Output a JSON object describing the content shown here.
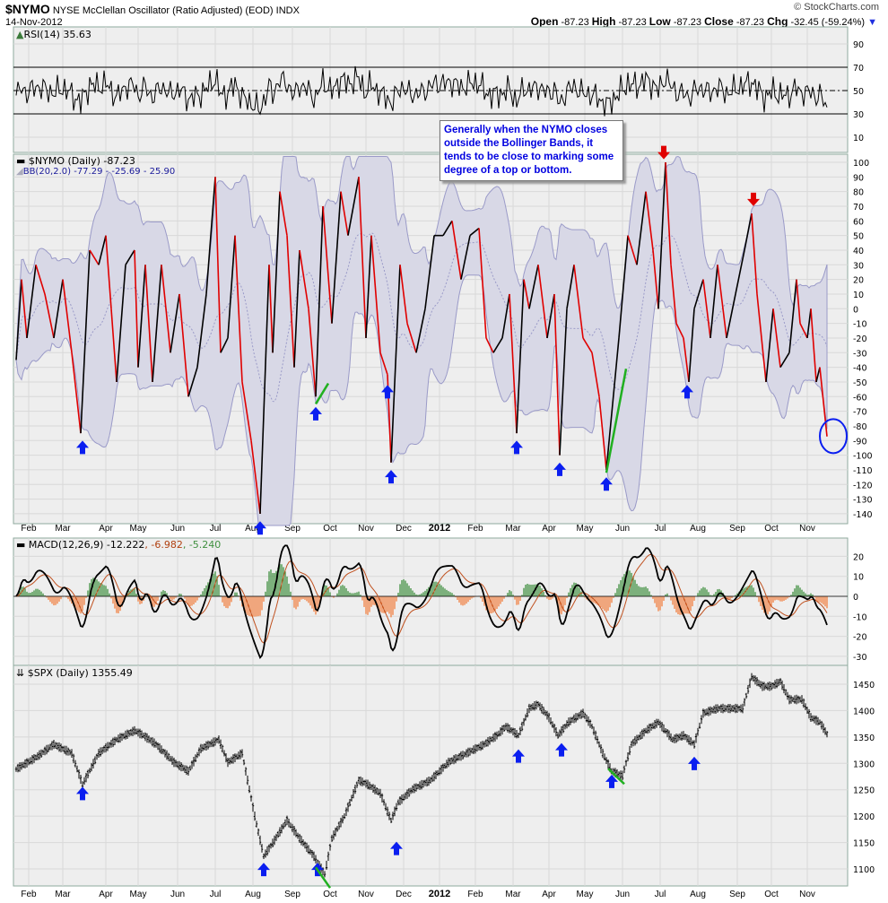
{
  "header": {
    "symbol": "$NYMO",
    "description": "NYSE McClellan Oscillator (Ratio Adjusted) (EOD)",
    "exchange": "INDX",
    "date": "14-Nov-2012",
    "watermark": "© StockCharts.com",
    "open_label": "Open",
    "open": "-87.23",
    "high_label": "High",
    "high": "-87.23",
    "low_label": "Low",
    "low": "-87.23",
    "close_label": "Close",
    "close": "-87.23",
    "chg_label": "Chg",
    "chg": "-32.45 (-59.24%)"
  },
  "annotation_text": "Generally when the NYMO closes outside the Bollinger Bands, it tends to be close to marking some degree of a  top or bottom.",
  "legends": {
    "rsi": "RSI(14) 35.63",
    "nymo": "$NYMO (Daily) -87.23",
    "bb": "BB(20,2.0) -77.29 - -25.69 - 25.90",
    "macd_main": "MACD(12,26,9) -12.222",
    "macd_signal": ", -6.982",
    "macd_hist": ", -5.240",
    "spx": "$SPX (Daily) 1355.49"
  },
  "colors": {
    "up": "#000000",
    "down": "#e00000",
    "bb_fill": "#d8d8e6",
    "bb_line": "#9a9ac8",
    "signal": "#c0501e",
    "hist_pos": "#3f8f3f",
    "hist_neg": "#f08040",
    "arrow": "#0a1ef0",
    "red_arrow": "#e00000",
    "green": "#20b020",
    "panel": "#eeeeee",
    "grid": "#d8d8d8",
    "border": "#8faa9e"
  },
  "chart_data": {
    "type": "line",
    "x_unit": "trading day index (Jan 2011 – 14 Nov 2012)",
    "month_labels": [
      {
        "t": 7,
        "label": "Feb"
      },
      {
        "t": 26,
        "label": "Mar"
      },
      {
        "t": 50,
        "label": "Apr"
      },
      {
        "t": 68,
        "label": "May"
      },
      {
        "t": 90,
        "label": "Jun"
      },
      {
        "t": 111,
        "label": "Jul"
      },
      {
        "t": 132,
        "label": "Aug"
      },
      {
        "t": 154,
        "label": "Sep"
      },
      {
        "t": 175,
        "label": "Oct"
      },
      {
        "t": 195,
        "label": "Nov"
      },
      {
        "t": 216,
        "label": "Dec"
      },
      {
        "t": 236,
        "label": "2012"
      },
      {
        "t": 256,
        "label": "Feb"
      },
      {
        "t": 277,
        "label": "Mar"
      },
      {
        "t": 297,
        "label": "Apr"
      },
      {
        "t": 317,
        "label": "May"
      },
      {
        "t": 338,
        "label": "Jun"
      },
      {
        "t": 359,
        "label": "Jul"
      },
      {
        "t": 380,
        "label": "Aug"
      },
      {
        "t": 402,
        "label": "Sep"
      },
      {
        "t": 421,
        "label": "Oct"
      },
      {
        "t": 441,
        "label": "Nov"
      }
    ],
    "panels": {
      "rsi": {
        "ticks": [
          90,
          70,
          50,
          30,
          10
        ],
        "overbought": 70,
        "oversold": 30,
        "range": [
          0,
          100
        ]
      },
      "nymo": {
        "ticks": [
          100,
          90,
          80,
          70,
          60,
          50,
          40,
          30,
          20,
          10,
          0,
          -10,
          -20,
          -30,
          -40,
          -50,
          -60,
          -70,
          -80,
          -90,
          -100,
          -110,
          -120,
          -130,
          -140
        ],
        "range": [
          -150,
          105
        ]
      },
      "macd": {
        "ticks": [
          20,
          10,
          0,
          -10,
          -20,
          -30
        ],
        "range": [
          -36,
          28
        ]
      },
      "spx": {
        "ticks": [
          1450,
          1400,
          1350,
          1300,
          1250,
          1200,
          1150,
          1100
        ],
        "range": [
          1070,
          1485
        ]
      }
    },
    "nymo": [
      [
        0,
        -35
      ],
      [
        3,
        20
      ],
      [
        6,
        -20
      ],
      [
        11,
        30
      ],
      [
        16,
        10
      ],
      [
        21,
        -20
      ],
      [
        26,
        20
      ],
      [
        31,
        -30
      ],
      [
        36,
        -85
      ],
      [
        41,
        40
      ],
      [
        46,
        30
      ],
      [
        50,
        50
      ],
      [
        53,
        0
      ],
      [
        56,
        -50
      ],
      [
        61,
        30
      ],
      [
        66,
        40
      ],
      [
        68,
        -40
      ],
      [
        72,
        30
      ],
      [
        76,
        -50
      ],
      [
        81,
        30
      ],
      [
        86,
        -30
      ],
      [
        91,
        10
      ],
      [
        96,
        -60
      ],
      [
        101,
        -40
      ],
      [
        106,
        10
      ],
      [
        111,
        90
      ],
      [
        114,
        -30
      ],
      [
        118,
        -20
      ],
      [
        122,
        50
      ],
      [
        126,
        -50
      ],
      [
        131,
        -90
      ],
      [
        136,
        -140
      ],
      [
        141,
        30
      ],
      [
        143,
        -30
      ],
      [
        147,
        80
      ],
      [
        151,
        50
      ],
      [
        155,
        -40
      ],
      [
        158,
        40
      ],
      [
        163,
        0
      ],
      [
        167,
        -60
      ],
      [
        171,
        70
      ],
      [
        176,
        -10
      ],
      [
        181,
        80
      ],
      [
        185,
        50
      ],
      [
        191,
        90
      ],
      [
        195,
        -20
      ],
      [
        198,
        50
      ],
      [
        203,
        -30
      ],
      [
        207,
        -45
      ],
      [
        209,
        -105
      ],
      [
        214,
        30
      ],
      [
        218,
        -10
      ],
      [
        223,
        -30
      ],
      [
        228,
        0
      ],
      [
        233,
        50
      ],
      [
        238,
        50
      ],
      [
        243,
        60
      ],
      [
        248,
        20
      ],
      [
        253,
        50
      ],
      [
        258,
        55
      ],
      [
        262,
        -20
      ],
      [
        266,
        -30
      ],
      [
        271,
        -20
      ],
      [
        275,
        10
      ],
      [
        279,
        -85
      ],
      [
        283,
        20
      ],
      [
        286,
        0
      ],
      [
        291,
        30
      ],
      [
        296,
        -20
      ],
      [
        300,
        10
      ],
      [
        303,
        -100
      ],
      [
        307,
        0
      ],
      [
        311,
        30
      ],
      [
        316,
        -20
      ],
      [
        321,
        -30
      ],
      [
        325,
        -60
      ],
      [
        329,
        -110
      ],
      [
        336,
        -20
      ],
      [
        341,
        50
      ],
      [
        346,
        30
      ],
      [
        351,
        80
      ],
      [
        355,
        40
      ],
      [
        358,
        0
      ],
      [
        362,
        100
      ],
      [
        365,
        30
      ],
      [
        368,
        -10
      ],
      [
        372,
        -20
      ],
      [
        375,
        -50
      ],
      [
        378,
        0
      ],
      [
        383,
        20
      ],
      [
        387,
        -20
      ],
      [
        391,
        30
      ],
      [
        396,
        -20
      ],
      [
        401,
        10
      ],
      [
        406,
        40
      ],
      [
        410,
        65
      ],
      [
        413,
        10
      ],
      [
        418,
        -50
      ],
      [
        422,
        0
      ],
      [
        426,
        -40
      ],
      [
        431,
        -30
      ],
      [
        435,
        20
      ],
      [
        437,
        -10
      ],
      [
        441,
        -20
      ],
      [
        443,
        0
      ],
      [
        446,
        -50
      ],
      [
        448,
        -40
      ],
      [
        452,
        -87.23
      ]
    ],
    "spx": [
      [
        0,
        1289
      ],
      [
        11,
        1311
      ],
      [
        21,
        1336
      ],
      [
        31,
        1319
      ],
      [
        37,
        1260
      ],
      [
        46,
        1319
      ],
      [
        56,
        1345
      ],
      [
        66,
        1362
      ],
      [
        71,
        1353
      ],
      [
        78,
        1336
      ],
      [
        88,
        1302
      ],
      [
        96,
        1285
      ],
      [
        103,
        1328
      ],
      [
        113,
        1345
      ],
      [
        118,
        1302
      ],
      [
        126,
        1319
      ],
      [
        133,
        1200
      ],
      [
        138,
        1124
      ],
      [
        143,
        1149
      ],
      [
        151,
        1192
      ],
      [
        158,
        1158
      ],
      [
        166,
        1124
      ],
      [
        172,
        1090
      ],
      [
        176,
        1158
      ],
      [
        183,
        1200
      ],
      [
        191,
        1268
      ],
      [
        196,
        1260
      ],
      [
        203,
        1243
      ],
      [
        209,
        1192
      ],
      [
        213,
        1226
      ],
      [
        221,
        1251
      ],
      [
        231,
        1268
      ],
      [
        241,
        1302
      ],
      [
        251,
        1319
      ],
      [
        261,
        1336
      ],
      [
        268,
        1353
      ],
      [
        273,
        1370
      ],
      [
        280,
        1353
      ],
      [
        286,
        1404
      ],
      [
        291,
        1412
      ],
      [
        297,
        1387
      ],
      [
        302,
        1353
      ],
      [
        308,
        1378
      ],
      [
        316,
        1395
      ],
      [
        321,
        1370
      ],
      [
        327,
        1319
      ],
      [
        332,
        1285
      ],
      [
        338,
        1277
      ],
      [
        343,
        1336
      ],
      [
        351,
        1362
      ],
      [
        358,
        1378
      ],
      [
        366,
        1345
      ],
      [
        372,
        1353
      ],
      [
        378,
        1336
      ],
      [
        383,
        1395
      ],
      [
        391,
        1404
      ],
      [
        398,
        1404
      ],
      [
        405,
        1404
      ],
      [
        410,
        1464
      ],
      [
        416,
        1446
      ],
      [
        421,
        1446
      ],
      [
        426,
        1455
      ],
      [
        431,
        1421
      ],
      [
        438,
        1421
      ],
      [
        443,
        1387
      ],
      [
        448,
        1378
      ],
      [
        452,
        1355.49
      ]
    ],
    "annotations": {
      "nymo_up_arrows": [
        [
          37,
          -95
        ],
        [
          136,
          -150
        ],
        [
          167,
          -72
        ],
        [
          207,
          -57
        ],
        [
          209,
          -115
        ],
        [
          279,
          -95
        ],
        [
          303,
          -110
        ],
        [
          329,
          -120
        ],
        [
          374,
          -57
        ]
      ],
      "nymo_down_arrows": [
        [
          361,
          107
        ],
        [
          411,
          75
        ]
      ],
      "nymo_circle": [
        454,
        -87
      ],
      "nymo_green_lines": [
        [
          [
            167,
            -65
          ],
          [
            174,
            -51
          ]
        ],
        [
          [
            329,
            -112
          ],
          [
            340,
            -41
          ]
        ]
      ],
      "spx_up_arrows": [
        [
          37,
          1242
        ],
        [
          138,
          1098
        ],
        [
          168,
          1098
        ],
        [
          212,
          1138
        ],
        [
          280,
          1313
        ],
        [
          304,
          1325
        ],
        [
          332,
          1265
        ],
        [
          378,
          1299
        ]
      ],
      "spx_green_lines": [
        [
          [
            167,
            1103
          ],
          [
            175,
            1064
          ]
        ],
        [
          [
            330,
            1290
          ],
          [
            339,
            1261
          ]
        ]
      ]
    }
  }
}
